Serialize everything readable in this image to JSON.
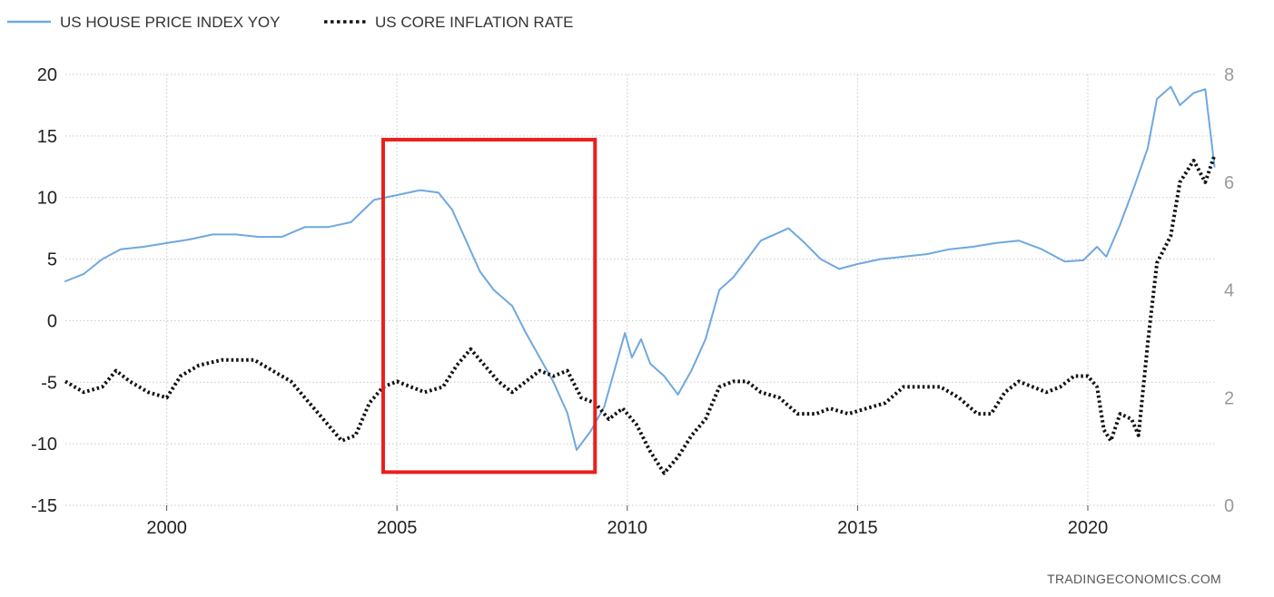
{
  "chart_data": {
    "type": "line",
    "legend": "top-left",
    "grid": true,
    "source": "TRADINGECONOMICS.COM",
    "x_ticks": [
      "2000",
      "2005",
      "2010",
      "2015",
      "2020"
    ],
    "xlim": [
      1997.8,
      2022.8
    ],
    "y_left": {
      "ticks": [
        "20",
        "15",
        "10",
        "5",
        "0",
        "-5",
        "-10",
        "-15"
      ],
      "ylim": [
        -15,
        20
      ]
    },
    "y_right": {
      "ticks": [
        "8",
        "6",
        "4",
        "2",
        "0"
      ],
      "ylim": [
        0,
        8
      ]
    },
    "highlight_box": {
      "x_range": [
        2004.7,
        2009.3
      ],
      "y_range": [
        -12.3,
        14.7
      ],
      "axis": "left",
      "color": "#e8201c"
    },
    "series": [
      {
        "name": "US HOUSE PRICE INDEX YOY",
        "axis": "left",
        "color": "#6fa8e0",
        "style": "solid",
        "x": [
          1997.8,
          1998.2,
          1998.6,
          1999.0,
          1999.5,
          2000.0,
          2000.5,
          2001.0,
          2001.5,
          2002.0,
          2002.5,
          2003.0,
          2003.5,
          2004.0,
          2004.5,
          2005.0,
          2005.5,
          2005.9,
          2006.2,
          2006.5,
          2006.8,
          2007.1,
          2007.5,
          2007.8,
          2008.1,
          2008.4,
          2008.7,
          2008.9,
          2009.2,
          2009.5,
          2009.8,
          2009.95,
          2010.1,
          2010.3,
          2010.5,
          2010.8,
          2011.1,
          2011.4,
          2011.7,
          2012.0,
          2012.3,
          2012.6,
          2012.9,
          2013.2,
          2013.5,
          2013.8,
          2014.2,
          2014.6,
          2015.0,
          2015.5,
          2016.0,
          2016.5,
          2017.0,
          2017.5,
          2018.0,
          2018.5,
          2019.0,
          2019.5,
          2019.9,
          2020.2,
          2020.4,
          2020.7,
          2021.0,
          2021.3,
          2021.5,
          2021.8,
          2022.0,
          2022.3,
          2022.55,
          2022.75
        ],
        "values": [
          3.2,
          3.8,
          5.0,
          5.8,
          6.0,
          6.3,
          6.6,
          7.0,
          7.0,
          6.8,
          6.8,
          7.6,
          7.6,
          8.0,
          9.8,
          10.2,
          10.6,
          10.4,
          9.0,
          6.5,
          4.0,
          2.5,
          1.2,
          -1.0,
          -3.0,
          -5.0,
          -7.5,
          -10.5,
          -9.0,
          -7.0,
          -3.0,
          -1.0,
          -3.0,
          -1.5,
          -3.5,
          -4.5,
          -6.0,
          -4.0,
          -1.5,
          2.5,
          3.5,
          5.0,
          6.5,
          7.0,
          7.5,
          6.5,
          5.0,
          4.2,
          4.6,
          5.0,
          5.2,
          5.4,
          5.8,
          6.0,
          6.3,
          6.5,
          5.8,
          4.8,
          4.9,
          6.0,
          5.2,
          7.8,
          10.8,
          14.0,
          18.0,
          19.0,
          17.5,
          18.5,
          18.8,
          12.5
        ]
      },
      {
        "name": "US CORE INFLATION RATE",
        "axis": "right",
        "color": "#111111",
        "style": "dotted",
        "x": [
          1997.8,
          1998.2,
          1998.6,
          1998.9,
          1999.2,
          1999.6,
          2000.0,
          2000.3,
          2000.7,
          2001.2,
          2001.6,
          2001.9,
          2002.3,
          2002.7,
          2003.0,
          2003.4,
          2003.8,
          2004.1,
          2004.4,
          2004.7,
          2005.0,
          2005.3,
          2005.6,
          2006.0,
          2006.3,
          2006.6,
          2006.9,
          2007.2,
          2007.5,
          2007.8,
          2008.1,
          2008.4,
          2008.7,
          2009.0,
          2009.3,
          2009.6,
          2009.9,
          2010.2,
          2010.5,
          2010.8,
          2011.1,
          2011.4,
          2011.7,
          2012.0,
          2012.3,
          2012.6,
          2012.9,
          2013.3,
          2013.7,
          2014.1,
          2014.4,
          2014.8,
          2015.2,
          2015.6,
          2016.0,
          2016.4,
          2016.8,
          2017.2,
          2017.6,
          2017.9,
          2018.2,
          2018.5,
          2018.8,
          2019.1,
          2019.4,
          2019.7,
          2020.0,
          2020.2,
          2020.35,
          2020.5,
          2020.7,
          2020.95,
          2021.1,
          2021.3,
          2021.5,
          2021.8,
          2022.0,
          2022.3,
          2022.55,
          2022.75
        ],
        "values": [
          2.3,
          2.1,
          2.2,
          2.5,
          2.3,
          2.1,
          2.0,
          2.4,
          2.6,
          2.7,
          2.7,
          2.7,
          2.5,
          2.3,
          2.0,
          1.6,
          1.2,
          1.3,
          1.9,
          2.2,
          2.3,
          2.2,
          2.1,
          2.2,
          2.6,
          2.9,
          2.6,
          2.3,
          2.1,
          2.3,
          2.5,
          2.4,
          2.5,
          2.0,
          1.9,
          1.6,
          1.8,
          1.5,
          1.0,
          0.6,
          0.9,
          1.3,
          1.6,
          2.2,
          2.3,
          2.3,
          2.1,
          2.0,
          1.7,
          1.7,
          1.8,
          1.7,
          1.8,
          1.9,
          2.2,
          2.2,
          2.2,
          2.0,
          1.7,
          1.7,
          2.1,
          2.3,
          2.2,
          2.1,
          2.2,
          2.4,
          2.4,
          2.2,
          1.4,
          1.2,
          1.7,
          1.6,
          1.3,
          3.0,
          4.5,
          5.0,
          6.0,
          6.4,
          6.0,
          6.5
        ]
      }
    ]
  }
}
